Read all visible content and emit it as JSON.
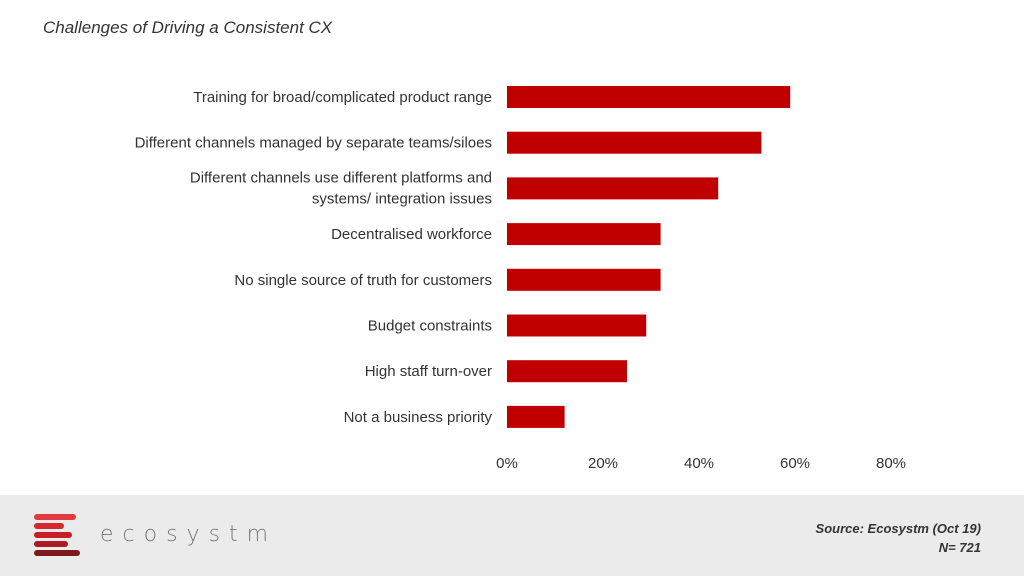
{
  "chart_data": {
    "type": "bar",
    "orientation": "horizontal",
    "title": "Challenges of Driving a Consistent CX",
    "categories": [
      "Training for broad/complicated product range",
      "Different channels managed by separate teams/siloes",
      "Different channels use different platforms and systems/ integration issues",
      "Decentralised workforce",
      "No single source of truth for customers",
      "Budget constraints",
      "High staff turn-over",
      "Not a business priority"
    ],
    "values": [
      59,
      53,
      44,
      32,
      32,
      29,
      25,
      12
    ],
    "xlim": [
      0,
      80
    ],
    "xticks": [
      "0%",
      "20%",
      "40%",
      "60%",
      "80%"
    ],
    "bar_color": "#c00000",
    "grid": false
  },
  "footer": {
    "logo_text": "ecosystm",
    "source": "Source: Ecosystm (Oct 19)",
    "n": "N= 721"
  }
}
